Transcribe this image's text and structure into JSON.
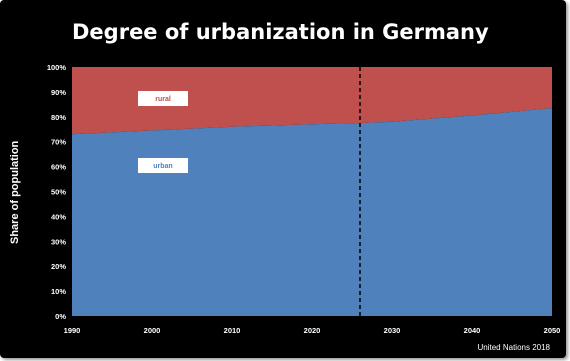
{
  "title": "Degree of urbanization in Germany",
  "source": "United Nations 2018",
  "colors": {
    "background": "#000000",
    "urban": "#4f81bd",
    "rural": "#c0504d",
    "marker": "#000000"
  },
  "chart_data": {
    "type": "area",
    "stacked": true,
    "title": "Degree of urbanization in Germany",
    "xlabel": "",
    "ylabel": "Share of population",
    "x": [
      1990,
      2000,
      2010,
      2020,
      2026,
      2030,
      2040,
      2050
    ],
    "xticks": [
      "1990",
      "2000",
      "2010",
      "2020",
      "2030",
      "2040",
      "2050"
    ],
    "yticks": [
      "0%",
      "10%",
      "20%",
      "30%",
      "40%",
      "50%",
      "60%",
      "70%",
      "80%",
      "90%",
      "100%"
    ],
    "xlim": [
      1990,
      2050
    ],
    "ylim": [
      0,
      100
    ],
    "series": [
      {
        "name": "urban",
        "values": [
          73,
          74.5,
          76,
          77,
          77.5,
          78,
          80.5,
          83.5
        ]
      },
      {
        "name": "rural",
        "values": [
          27,
          25.5,
          24,
          23,
          22.5,
          22,
          19.5,
          16.5
        ]
      }
    ],
    "marker_x": 2026,
    "grid": false,
    "legend": "inline labels"
  }
}
